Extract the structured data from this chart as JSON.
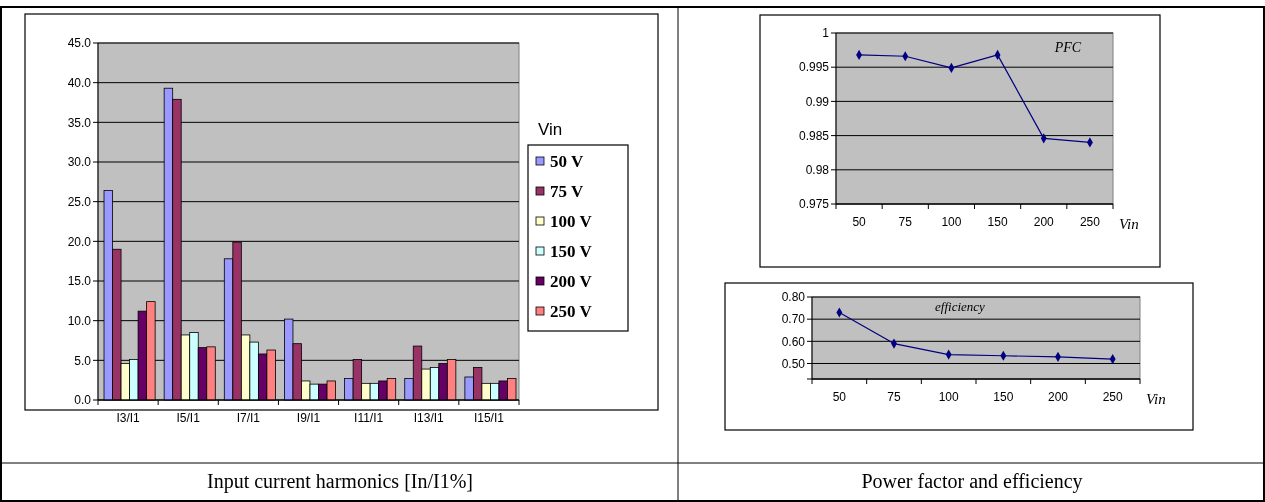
{
  "chart_data": [
    {
      "type": "bar",
      "title": "Input current harmonics [In/I1%]",
      "categories": [
        "I3/I1",
        "I5/I1",
        "I7/I1",
        "I9/I1",
        "I11/I1",
        "I13/I1",
        "I15/I1"
      ],
      "legend_title": "Vin",
      "legend": "right",
      "grid": "y",
      "ylim": [
        0,
        45
      ],
      "yticks": [
        {
          "value": 0,
          "label": "0.0"
        },
        {
          "value": 5,
          "label": "5.0"
        },
        {
          "value": 10,
          "label": "10.0"
        },
        {
          "value": 15,
          "label": "15.0"
        },
        {
          "value": 20,
          "label": "20.0"
        },
        {
          "value": 25,
          "label": "25.0"
        },
        {
          "value": 30,
          "label": "30.0"
        },
        {
          "value": 35,
          "label": "35.0"
        },
        {
          "value": 40,
          "label": "40.0"
        },
        {
          "value": 45,
          "label": "45.0"
        }
      ],
      "series": [
        {
          "name": "50 V",
          "color": "#9999ff",
          "values": [
            26.4,
            39.3,
            17.8,
            10.2,
            2.7,
            2.7,
            2.9
          ]
        },
        {
          "name": "75 V",
          "color": "#993366",
          "values": [
            19.0,
            37.9,
            19.9,
            7.1,
            5.1,
            6.8,
            4.1
          ]
        },
        {
          "name": "100 V",
          "color": "#ffffcc",
          "values": [
            4.6,
            8.2,
            8.2,
            2.4,
            2.1,
            3.9,
            2.1
          ]
        },
        {
          "name": "150 V",
          "color": "#ccffff",
          "values": [
            5.1,
            8.5,
            7.3,
            2.0,
            2.1,
            4.1,
            2.1
          ]
        },
        {
          "name": "200 V",
          "color": "#660066",
          "values": [
            11.2,
            6.6,
            5.8,
            2.0,
            2.4,
            4.6,
            2.4
          ]
        },
        {
          "name": "250 V",
          "color": "#ff8080",
          "values": [
            12.4,
            6.7,
            6.3,
            2.4,
            2.7,
            5.1,
            2.7
          ]
        }
      ]
    },
    {
      "type": "line",
      "title": "PFC",
      "xlabel": "Vin",
      "categories": [
        "50",
        "75",
        "100",
        "150",
        "200",
        "250"
      ],
      "grid": "y",
      "marker": "diamond",
      "legend": false,
      "ylim": [
        0.975,
        1
      ],
      "yticks": [
        0.975,
        0.98,
        0.985,
        0.99,
        0.995,
        1
      ],
      "annotations": [
        "Power factor and efficiency"
      ],
      "series": [
        {
          "color": "#000080",
          "values": [
            0.9968,
            0.9966,
            0.9949,
            0.9968,
            0.9846,
            0.984
          ]
        }
      ]
    },
    {
      "type": "line",
      "title": "efficiency",
      "xlabel": "Vin",
      "categories": [
        "50",
        "75",
        "100",
        "150",
        "200",
        "250"
      ],
      "grid": "y",
      "marker": "diamond",
      "legend": false,
      "ylim": [
        0.43,
        0.8
      ],
      "yticks": [
        {
          "value": 0.43,
          "label": null
        },
        {
          "value": 0.5,
          "label": "0.50"
        },
        {
          "value": 0.6,
          "label": "0.60"
        },
        {
          "value": 0.7,
          "label": "0.70"
        },
        {
          "value": 0.8,
          "label": "0.80"
        }
      ],
      "series": [
        {
          "color": "#000080",
          "values": [
            0.73,
            0.59,
            0.54,
            0.535,
            0.53,
            0.52
          ]
        }
      ]
    }
  ]
}
